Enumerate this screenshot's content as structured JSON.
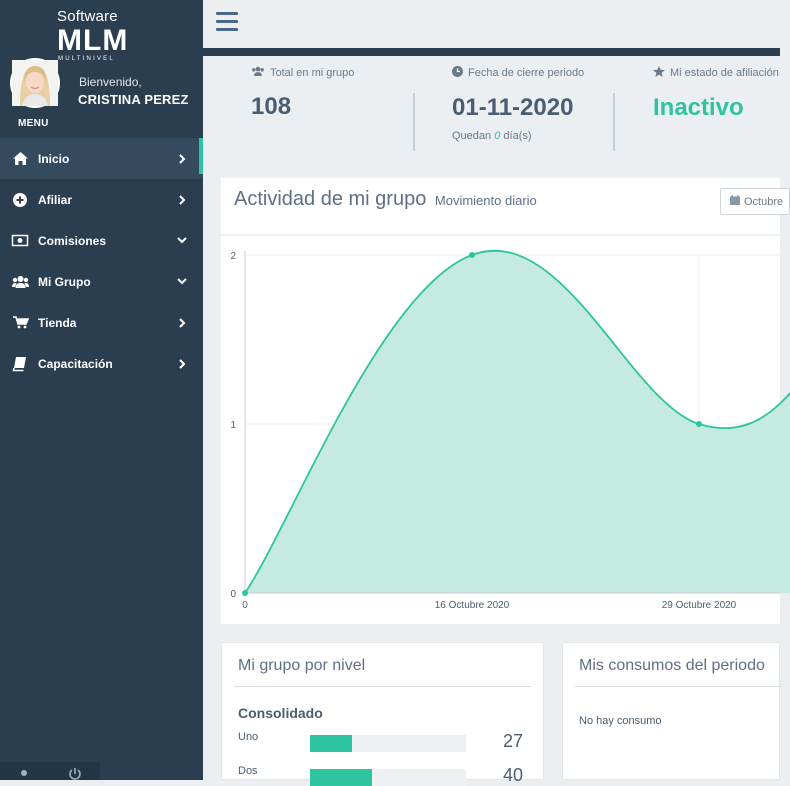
{
  "brand": {
    "top": "Software",
    "main": "MLM",
    "sub": "MULTINIVEL"
  },
  "user": {
    "welcome": "Bienvenido,",
    "name": "CRISTINA PEREZ"
  },
  "menu_header": "MENU",
  "nav": [
    {
      "label": "Inicio",
      "icon": "home-icon",
      "arrow": "chevron-right-icon",
      "active": true
    },
    {
      "label": "Afiliar",
      "icon": "plus-circle-icon",
      "arrow": "chevron-right-icon"
    },
    {
      "label": "Comisiones",
      "icon": "money-icon",
      "arrow": "chevron-down-icon"
    },
    {
      "label": "Mi Grupo",
      "icon": "users-icon",
      "arrow": "chevron-down-icon"
    },
    {
      "label": "Tienda",
      "icon": "cart-icon",
      "arrow": "chevron-right-icon"
    },
    {
      "label": "Capacitación",
      "icon": "book-icon",
      "arrow": "chevron-right-icon"
    }
  ],
  "stats": {
    "total_label": "Total en mi grupo",
    "total_value": "108",
    "fecha_label": "Fecha de cierre periodo",
    "fecha_value": "01-11-2020",
    "quedan_prefix": "Quedan",
    "quedan_value": "0",
    "quedan_suffix": "día(s)",
    "estado_label": "Mi estado de afiliación",
    "estado_value": "Inactivo"
  },
  "activity": {
    "title": "Actividad de mi grupo",
    "subtitle": "Movimiento diario",
    "month_button": "Octubre"
  },
  "chart_data": {
    "type": "area",
    "x": [
      "0",
      "16 Octubre 2020",
      "29 Octubre 2020"
    ],
    "values": [
      0,
      2,
      1
    ],
    "y_ticks": [
      "0",
      "1",
      "2"
    ],
    "ylim": [
      0,
      2
    ],
    "grid": true,
    "color": "#2ec4a0",
    "fill": "#c5eadf"
  },
  "nivel": {
    "title": "Mi grupo por nivel",
    "subtitle": "Consolidado",
    "rows": [
      {
        "label": "Uno",
        "value": "27",
        "fraction": 0.27
      },
      {
        "label": "Dos",
        "value": "40",
        "fraction": 0.4
      }
    ]
  },
  "consumos": {
    "title": "Mis consumos del periodo",
    "empty": "No hay consumo"
  },
  "colors": {
    "accent": "#2ec4a0",
    "sidebar": "#2b3e50",
    "text": "#4a5d72"
  }
}
